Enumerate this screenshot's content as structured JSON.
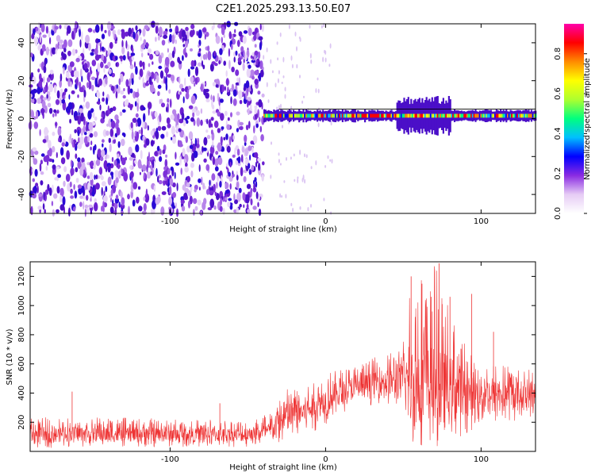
{
  "chart_data": [
    {
      "type": "heatmap",
      "title": "C2E1.2025.293.13.50.E07",
      "xlabel": "Height of straight line (km)",
      "ylabel": "Frequency (Hz)",
      "xlim": [
        -190,
        135
      ],
      "ylim": [
        -50,
        50
      ],
      "x_ticks": [
        -100,
        0,
        100
      ],
      "y_ticks": [
        -40,
        -20,
        0,
        20,
        40
      ],
      "colorbar": {
        "label": "Normalized spectral amplitude",
        "range": [
          0.0,
          0.95
        ],
        "ticks": [
          0.0,
          0.2,
          0.4,
          0.6,
          0.8
        ],
        "colormap": [
          "#ffffff",
          "#e6ccf5",
          "#8a2be2",
          "#0000ff",
          "#00bfff",
          "#00ff7f",
          "#adff2f",
          "#ffff00",
          "#ff8c00",
          "#ff0000",
          "#ff00aa"
        ]
      },
      "regions": [
        {
          "x_range": [
            -190,
            -40
          ],
          "description_level": 0.1,
          "pattern": "broadband speckle"
        },
        {
          "x_range": [
            -40,
            135
          ],
          "center_freq": 1.5,
          "band_halfwidth": 2.5,
          "peak_level": 0.85
        }
      ]
    },
    {
      "type": "line",
      "xlabel": "Height of straight line (km)",
      "ylabel": "SNR (10 * v/v)",
      "xlim": [
        -190,
        135
      ],
      "ylim": [
        0,
        1300
      ],
      "x_ticks": [
        -100,
        0,
        100
      ],
      "y_ticks": [
        200,
        400,
        600,
        800,
        1000,
        1200
      ],
      "color": "#ee3333",
      "envelope": [
        {
          "x": -190,
          "low": 20,
          "high": 230,
          "mean": 110
        },
        {
          "x": -160,
          "low": 30,
          "high": 240,
          "mean": 120
        },
        {
          "x": -120,
          "low": 30,
          "high": 230,
          "mean": 115
        },
        {
          "x": -80,
          "low": 30,
          "high": 220,
          "mean": 110
        },
        {
          "x": -50,
          "low": 30,
          "high": 220,
          "mean": 115
        },
        {
          "x": -35,
          "low": 40,
          "high": 280,
          "mean": 140
        },
        {
          "x": -25,
          "low": 60,
          "high": 480,
          "mean": 230
        },
        {
          "x": -10,
          "low": 120,
          "high": 500,
          "mean": 290
        },
        {
          "x": 5,
          "low": 220,
          "high": 560,
          "mean": 380
        },
        {
          "x": 20,
          "low": 300,
          "high": 600,
          "mean": 440
        },
        {
          "x": 35,
          "low": 330,
          "high": 660,
          "mean": 480
        },
        {
          "x": 48,
          "low": 300,
          "high": 700,
          "mean": 480
        },
        {
          "x": 55,
          "low": 40,
          "high": 1200,
          "mean": 430
        },
        {
          "x": 70,
          "low": 30,
          "high": 1300,
          "mean": 420
        },
        {
          "x": 80,
          "low": 60,
          "high": 1000,
          "mean": 420
        },
        {
          "x": 95,
          "low": 150,
          "high": 640,
          "mean": 400
        },
        {
          "x": 115,
          "low": 200,
          "high": 600,
          "mean": 390
        },
        {
          "x": 135,
          "low": 220,
          "high": 580,
          "mean": 390
        }
      ],
      "spikes": [
        {
          "x": -163,
          "y": 410
        },
        {
          "x": -68,
          "y": 330
        },
        {
          "x": 55,
          "y": 1200
        },
        {
          "x": 62,
          "y": 1150
        },
        {
          "x": 68,
          "y": 1060
        },
        {
          "x": 73,
          "y": 1290
        },
        {
          "x": 75,
          "y": 1010
        },
        {
          "x": 80,
          "y": 1060
        },
        {
          "x": 94,
          "y": 1080
        },
        {
          "x": 108,
          "y": 820
        }
      ]
    }
  ]
}
